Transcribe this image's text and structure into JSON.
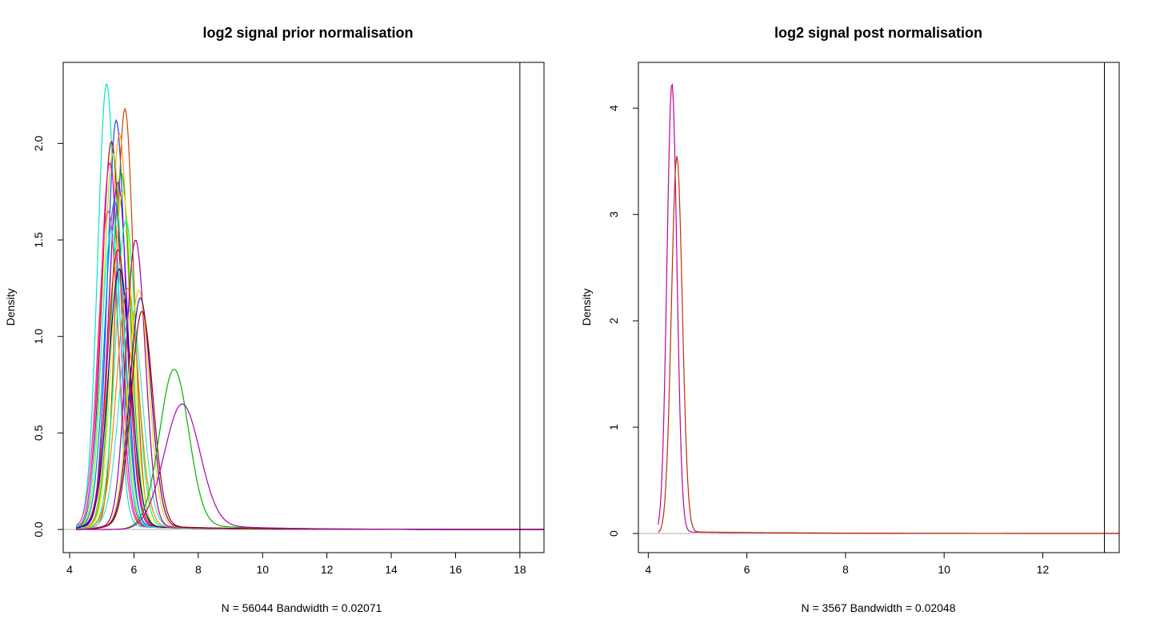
{
  "chart_data": [
    {
      "type": "line",
      "title": "log2 signal prior normalisation",
      "xlabel": "N = 56044   Bandwidth = 0.02071",
      "ylabel": "Density",
      "xlim": [
        3.8,
        18.75
      ],
      "ylim": [
        -0.12,
        2.42
      ],
      "xticks": [
        4,
        6,
        8,
        10,
        12,
        14,
        16,
        18
      ],
      "yticks": [
        0.0,
        0.5,
        1.0,
        1.5,
        2.0
      ],
      "ytick_labels": [
        "0.0",
        "0.5",
        "1.0",
        "1.5",
        "2.0"
      ],
      "vline": 18.0,
      "hline": 0,
      "grid": false,
      "series": [
        {
          "color": "#00e5cc",
          "peak_x": 5.15,
          "peak_y": 2.31,
          "sigma": 0.28,
          "tail": 0.6
        },
        {
          "color": "#2040ff",
          "peak_x": 5.45,
          "peak_y": 2.12,
          "sigma": 0.28,
          "tail": 0.6
        },
        {
          "color": "#d04000",
          "peak_x": 5.72,
          "peak_y": 2.18,
          "sigma": 0.27,
          "tail": 0.6
        },
        {
          "color": "#ffa500",
          "peak_x": 5.55,
          "peak_y": 2.05,
          "sigma": 0.29,
          "tail": 0.6
        },
        {
          "color": "#cc0000",
          "peak_x": 5.3,
          "peak_y": 2.01,
          "sigma": 0.3,
          "tail": 0.6
        },
        {
          "color": "#7fff00",
          "peak_x": 5.35,
          "peak_y": 1.95,
          "sigma": 0.3,
          "tail": 0.6
        },
        {
          "color": "#ff00cc",
          "peak_x": 5.25,
          "peak_y": 1.9,
          "sigma": 0.3,
          "tail": 0.6
        },
        {
          "color": "#00c800",
          "peak_x": 5.6,
          "peak_y": 1.85,
          "sigma": 0.3,
          "tail": 0.6
        },
        {
          "color": "#8000ff",
          "peak_x": 5.5,
          "peak_y": 1.8,
          "sigma": 0.3,
          "tail": 0.6
        },
        {
          "color": "#e6e600",
          "peak_x": 5.65,
          "peak_y": 1.75,
          "sigma": 0.31,
          "tail": 0.6
        },
        {
          "color": "#0080ff",
          "peak_x": 5.4,
          "peak_y": 1.7,
          "sigma": 0.31,
          "tail": 0.6
        },
        {
          "color": "#ff4080",
          "peak_x": 5.2,
          "peak_y": 1.65,
          "sigma": 0.31,
          "tail": 0.6
        },
        {
          "color": "#00ff80",
          "peak_x": 5.75,
          "peak_y": 1.6,
          "sigma": 0.32,
          "tail": 0.6
        },
        {
          "color": "#00ffff",
          "peak_x": 5.3,
          "peak_y": 1.55,
          "sigma": 0.32,
          "tail": 0.6
        },
        {
          "color": "#ff0000",
          "peak_x": 5.5,
          "peak_y": 1.45,
          "sigma": 0.33,
          "tail": 0.6
        },
        {
          "color": "#0000cc",
          "peak_x": 5.55,
          "peak_y": 1.35,
          "sigma": 0.34,
          "tail": 0.6
        },
        {
          "color": "#ff8000",
          "peak_x": 5.8,
          "peak_y": 1.25,
          "sigma": 0.34,
          "tail": 0.6
        },
        {
          "color": "#40e0d0",
          "peak_x": 5.9,
          "peak_y": 1.15,
          "sigma": 0.35,
          "tail": 0.6
        },
        {
          "color": "#a000a0",
          "peak_x": 6.05,
          "peak_y": 1.5,
          "sigma": 0.3,
          "tail": 0.6
        },
        {
          "color": "#f0d000",
          "peak_x": 6.15,
          "peak_y": 1.24,
          "sigma": 0.32,
          "tail": 0.6
        },
        {
          "color": "#5000a0",
          "peak_x": 6.2,
          "peak_y": 1.2,
          "sigma": 0.33,
          "tail": 0.6
        },
        {
          "color": "#a00000",
          "peak_x": 6.25,
          "peak_y": 1.13,
          "sigma": 0.34,
          "tail": 0.6
        },
        {
          "color": "#00b000",
          "peak_x": 7.25,
          "peak_y": 0.83,
          "sigma": 0.45,
          "tail": 0.8
        },
        {
          "color": "#b000b0",
          "peak_x": 7.5,
          "peak_y": 0.65,
          "sigma": 0.55,
          "tail": 0.8
        }
      ]
    },
    {
      "type": "line",
      "title": "log2 signal post normalisation",
      "xlabel": "N = 3567   Bandwidth = 0.02048",
      "ylabel": "Density",
      "xlim": [
        3.8,
        13.55
      ],
      "ylim": [
        -0.18,
        4.43
      ],
      "xticks": [
        4,
        6,
        8,
        10,
        12
      ],
      "yticks": [
        0,
        1,
        2,
        3,
        4
      ],
      "ytick_labels": [
        "0",
        "1",
        "2",
        "3",
        "4"
      ],
      "vline": 13.25,
      "hline": 0,
      "grid": false,
      "series": [
        {
          "color": "#c000a0",
          "peak_x": 4.48,
          "peak_y": 4.24,
          "sigma": 0.1,
          "tail": 0.45
        },
        {
          "color": "#c03000",
          "peak_x": 4.58,
          "peak_y": 3.55,
          "sigma": 0.11,
          "tail": 0.5
        }
      ]
    }
  ]
}
